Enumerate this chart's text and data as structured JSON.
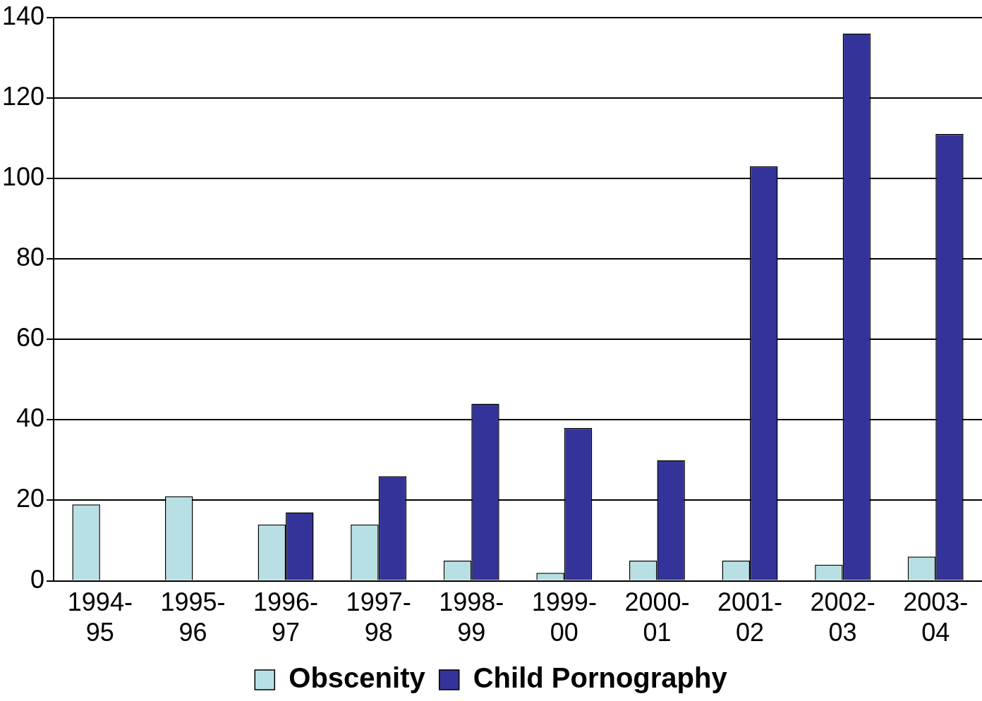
{
  "chart_data": {
    "type": "bar",
    "categories": [
      "1994-95",
      "1995-96",
      "1996-97",
      "1997-98",
      "1998-99",
      "1999-00",
      "2000-01",
      "2001-02",
      "2002-03",
      "2003-04"
    ],
    "series": [
      {
        "name": "Obscenity",
        "color": "#b8e0e4",
        "values": [
          19,
          21,
          14,
          14,
          5,
          2,
          5,
          5,
          4,
          6
        ]
      },
      {
        "name": "Child Pornography",
        "color": "#333399",
        "values": [
          0,
          0,
          17,
          26,
          44,
          38,
          30,
          103,
          136,
          111
        ]
      }
    ],
    "ylim": [
      0,
      140
    ],
    "yticks": [
      0,
      20,
      40,
      60,
      80,
      100,
      120,
      140
    ],
    "grid": "y",
    "legend": "bottom"
  }
}
